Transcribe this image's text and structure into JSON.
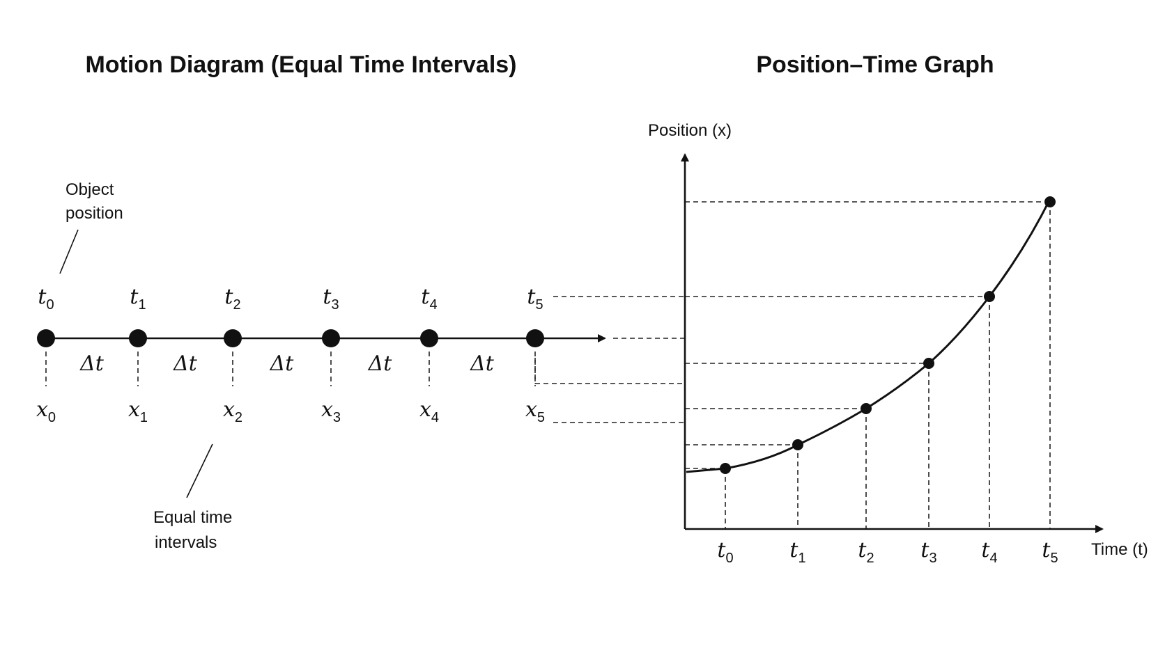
{
  "titles": {
    "left": "Motion Diagram (Equal Time Intervals)",
    "right": "Position–Time Graph"
  },
  "annotations": {
    "object_position": [
      "Object",
      "position"
    ],
    "equal_intervals": [
      "Equal time",
      "intervals"
    ]
  },
  "motion": {
    "time_symbol": "t",
    "position_symbol": "x",
    "interval_label": "Δt",
    "indices": [
      "0",
      "1",
      "2",
      "3",
      "4",
      "5"
    ]
  },
  "graph": {
    "y_axis_label": "Position (x)",
    "x_axis_label": "Time (t)"
  }
}
